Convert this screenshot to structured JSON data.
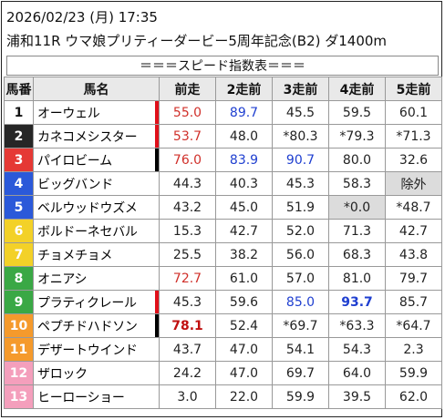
{
  "header": {
    "datetime": "2026/02/23 (月) 17:35",
    "race": "浦和11R ウマ娘プリティーダービー5周年記念(B2) ダ1400m"
  },
  "banner": "＝＝＝スピード指数表＝＝＝",
  "columns": [
    "馬番",
    "馬名",
    "前走",
    "2走前",
    "3走前",
    "4走前",
    "5走前"
  ],
  "frame_colors": {
    "1": {
      "bg": "#ffffff",
      "fg": "#111111"
    },
    "2": {
      "bg": "#262626",
      "fg": "#ffffff"
    },
    "3": {
      "bg": "#e53935",
      "fg": "#ffffff"
    },
    "4": {
      "bg": "#2b59d9",
      "fg": "#ffffff"
    },
    "5": {
      "bg": "#f3d128",
      "fg": "#ffffff"
    },
    "6": {
      "bg": "#3aa845",
      "fg": "#ffffff"
    },
    "7": {
      "bg": "#f59a2c",
      "fg": "#ffffff"
    },
    "8": {
      "bg": "#f49fbc",
      "fg": "#ffffff"
    }
  },
  "rows": [
    {
      "num": "1",
      "frame": "1",
      "name": "オーウェル",
      "marker": "red",
      "cells": [
        {
          "v": "55.0",
          "c": "red"
        },
        {
          "v": "89.7",
          "c": "blue"
        },
        {
          "v": "45.5",
          "c": "black"
        },
        {
          "v": "59.5",
          "c": "black"
        },
        {
          "v": "60.1",
          "c": "black"
        }
      ]
    },
    {
      "num": "2",
      "frame": "2",
      "name": "カネコメシスター",
      "marker": "red",
      "cells": [
        {
          "v": "53.7",
          "c": "red"
        },
        {
          "v": "48.0",
          "c": "black"
        },
        {
          "v": "*80.3",
          "c": "black"
        },
        {
          "v": "*79.3",
          "c": "black"
        },
        {
          "v": "*71.3",
          "c": "black"
        }
      ]
    },
    {
      "num": "3",
      "frame": "3",
      "name": "パイロビーム",
      "marker": "black",
      "cells": [
        {
          "v": "76.0",
          "c": "red"
        },
        {
          "v": "83.9",
          "c": "blue"
        },
        {
          "v": "90.7",
          "c": "blue"
        },
        {
          "v": "80.0",
          "c": "black"
        },
        {
          "v": "32.6",
          "c": "black"
        }
      ]
    },
    {
      "num": "4",
      "frame": "4",
      "name": "ビッグバンド",
      "marker": "",
      "cells": [
        {
          "v": "44.3",
          "c": "black"
        },
        {
          "v": "40.3",
          "c": "black"
        },
        {
          "v": "45.3",
          "c": "black"
        },
        {
          "v": "58.3",
          "c": "black"
        },
        {
          "v": "除外",
          "c": "black",
          "shade": true
        }
      ]
    },
    {
      "num": "5",
      "frame": "4",
      "name": "ベルウッドウズメ",
      "marker": "",
      "cells": [
        {
          "v": "43.2",
          "c": "black"
        },
        {
          "v": "45.0",
          "c": "black"
        },
        {
          "v": "51.9",
          "c": "black"
        },
        {
          "v": "*0.0",
          "c": "black",
          "shade": true
        },
        {
          "v": "*48.7",
          "c": "black"
        }
      ]
    },
    {
      "num": "6",
      "frame": "5",
      "name": "ボルドーネセバル",
      "marker": "",
      "cells": [
        {
          "v": "15.3",
          "c": "black"
        },
        {
          "v": "42.7",
          "c": "black"
        },
        {
          "v": "52.0",
          "c": "black"
        },
        {
          "v": "71.3",
          "c": "black"
        },
        {
          "v": "42.7",
          "c": "black"
        }
      ]
    },
    {
      "num": "7",
      "frame": "5",
      "name": "チョメチョメ",
      "marker": "",
      "cells": [
        {
          "v": "25.5",
          "c": "black"
        },
        {
          "v": "38.2",
          "c": "black"
        },
        {
          "v": "56.0",
          "c": "black"
        },
        {
          "v": "68.3",
          "c": "black"
        },
        {
          "v": "43.8",
          "c": "black"
        }
      ]
    },
    {
      "num": "8",
      "frame": "6",
      "name": "オニアシ",
      "marker": "",
      "cells": [
        {
          "v": "72.7",
          "c": "red"
        },
        {
          "v": "61.0",
          "c": "black"
        },
        {
          "v": "57.0",
          "c": "black"
        },
        {
          "v": "81.0",
          "c": "black"
        },
        {
          "v": "79.7",
          "c": "black"
        }
      ]
    },
    {
      "num": "9",
      "frame": "6",
      "name": "プラティクレール",
      "marker": "red",
      "cells": [
        {
          "v": "45.3",
          "c": "black"
        },
        {
          "v": "59.6",
          "c": "black"
        },
        {
          "v": "85.0",
          "c": "blue"
        },
        {
          "v": "93.7",
          "c": "boldblue"
        },
        {
          "v": "85.7",
          "c": "black"
        }
      ]
    },
    {
      "num": "10",
      "frame": "7",
      "name": "ペプチドハドソン",
      "marker": "black",
      "cells": [
        {
          "v": "78.1",
          "c": "boldred"
        },
        {
          "v": "52.4",
          "c": "black"
        },
        {
          "v": "*69.7",
          "c": "black"
        },
        {
          "v": "*63.3",
          "c": "black"
        },
        {
          "v": "*64.7",
          "c": "black"
        }
      ]
    },
    {
      "num": "11",
      "frame": "7",
      "name": "デザートウインド",
      "marker": "",
      "cells": [
        {
          "v": "43.7",
          "c": "black"
        },
        {
          "v": "47.0",
          "c": "black"
        },
        {
          "v": "54.1",
          "c": "black"
        },
        {
          "v": "54.3",
          "c": "black"
        },
        {
          "v": "2.3",
          "c": "black"
        }
      ]
    },
    {
      "num": "12",
      "frame": "8",
      "name": "ザロック",
      "marker": "",
      "cells": [
        {
          "v": "24.2",
          "c": "black"
        },
        {
          "v": "47.0",
          "c": "black"
        },
        {
          "v": "69.7",
          "c": "black"
        },
        {
          "v": "64.0",
          "c": "black"
        },
        {
          "v": "59.9",
          "c": "black"
        }
      ]
    },
    {
      "num": "13",
      "frame": "8",
      "name": "ヒーローショー",
      "marker": "",
      "cells": [
        {
          "v": "3.0",
          "c": "black"
        },
        {
          "v": "22.0",
          "c": "black"
        },
        {
          "v": "59.9",
          "c": "black"
        },
        {
          "v": "39.5",
          "c": "black"
        },
        {
          "v": "62.0",
          "c": "black"
        }
      ]
    }
  ]
}
